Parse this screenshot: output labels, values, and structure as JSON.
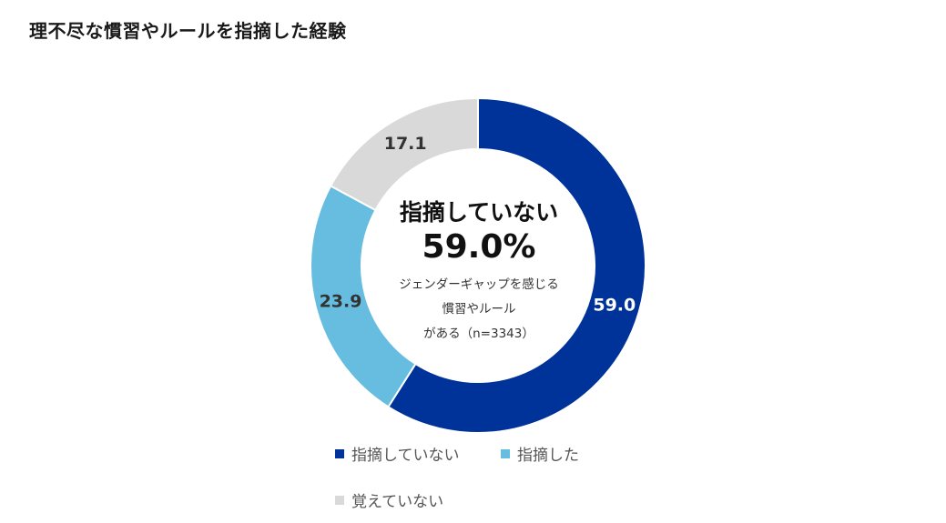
{
  "chart_data": {
    "type": "pie",
    "title": "理不尽な慣習やルールを指摘した経験",
    "categories": [
      "指摘していない",
      "指摘した",
      "覚えていない"
    ],
    "values": [
      59.0,
      23.9,
      17.1
    ],
    "value_labels": [
      "59.0",
      "23.9",
      "17.1"
    ],
    "colors": [
      "#003399",
      "#66BDE0",
      "#D9D9D9"
    ],
    "value_label_colors": [
      "#ffffff",
      "#333333",
      "#333333"
    ],
    "donut": true,
    "legend_position": "bottom",
    "center": {
      "category": "指摘していない",
      "value": "59.0%",
      "note_lines": [
        "ジェンダーギャップを感じる",
        "慣習やルール",
        "がある（n=3343）"
      ]
    }
  }
}
